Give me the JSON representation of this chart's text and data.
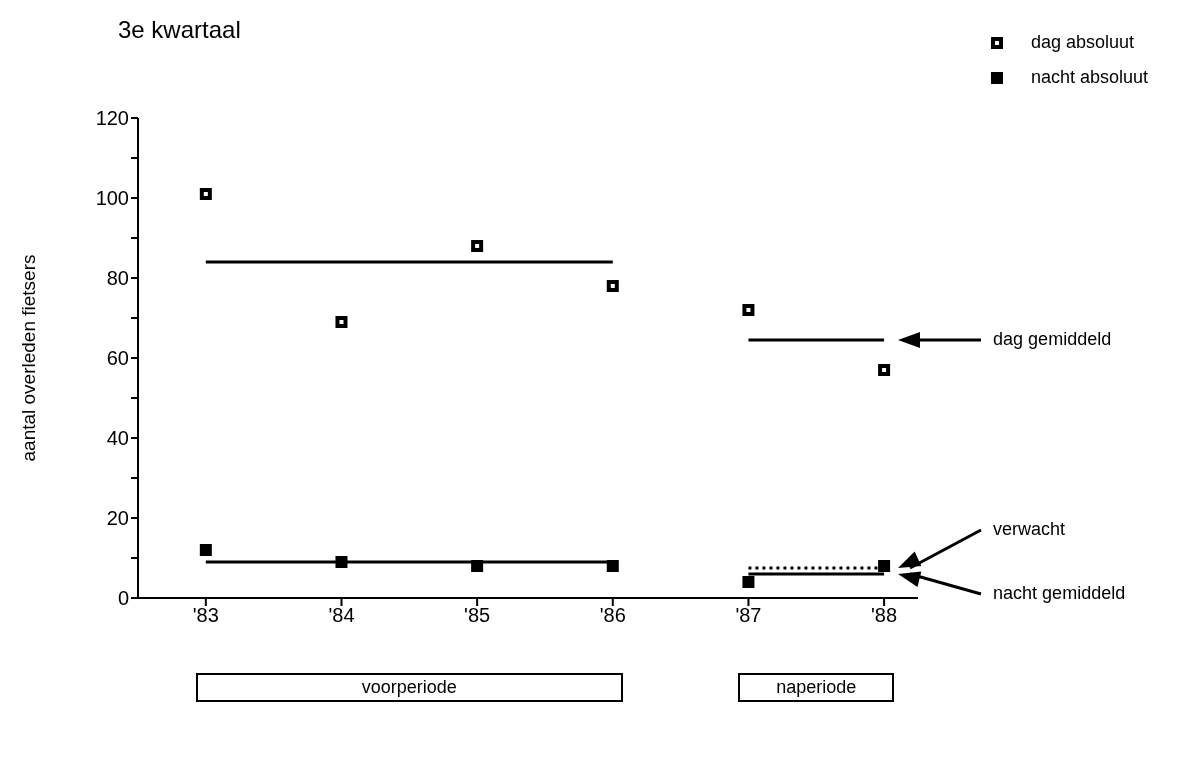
{
  "chart_data": {
    "type": "scatter",
    "title": "3e  kwartaal",
    "ylabel": "aantal overleden fietsers",
    "categories": [
      "'83",
      "'84",
      "'85",
      "'86",
      "'87",
      "'88"
    ],
    "series": [
      {
        "name": "dag absoluut",
        "marker": "square",
        "color": "#000000",
        "values": [
          101,
          69,
          88,
          78,
          72,
          57
        ]
      },
      {
        "name": "nacht absoluut",
        "marker": "square",
        "color": "#000000",
        "values": [
          12,
          9,
          8,
          8,
          4,
          8
        ]
      },
      {
        "type": "line",
        "color": "#000000",
        "line_style": "solid",
        "values": [
          84,
          84,
          84,
          84,
          null,
          null
        ]
      },
      {
        "type": "line",
        "color": "#000000",
        "line_style": "solid",
        "values": [
          null,
          null,
          null,
          null,
          64.5,
          64.5
        ]
      },
      {
        "type": "line",
        "color": "#000000",
        "line_style": "solid",
        "values": [
          9,
          9,
          9,
          9,
          null,
          null
        ]
      },
      {
        "type": "line",
        "color": "#000000",
        "line_style": "solid",
        "values": [
          null,
          null,
          null,
          null,
          6,
          6
        ]
      },
      {
        "type": "line",
        "color": "#000000",
        "line_style": "dotted",
        "values": [
          null,
          null,
          null,
          null,
          7.5,
          7.5
        ]
      }
    ],
    "ylim": [
      0,
      120
    ],
    "yticks": [
      0,
      {
        "value": 10,
        "label": null
      },
      20,
      {
        "value": 30,
        "label": null
      },
      40,
      {
        "value": 50,
        "label": null
      },
      60,
      {
        "value": 70,
        "label": null
      },
      80,
      {
        "value": 90,
        "label": null
      },
      100,
      {
        "value": 110,
        "label": null
      },
      120
    ],
    "legend": "top right",
    "annotations": [
      "dag gemiddeld",
      "verwacht",
      "nacht gemiddeld",
      "voorperiode",
      "naperiode"
    ]
  }
}
